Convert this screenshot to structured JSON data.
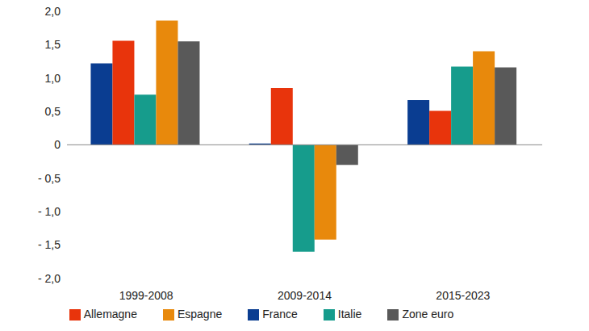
{
  "chart_data": {
    "type": "bar",
    "categories": [
      "1999-2008",
      "2009-2014",
      "2015-2023"
    ],
    "series": [
      {
        "name": "France",
        "color": "#0a3d91",
        "values": [
          1.22,
          0.02,
          0.67
        ]
      },
      {
        "name": "Allemagne",
        "color": "#e8340c",
        "values": [
          1.56,
          0.85,
          0.51
        ]
      },
      {
        "name": "Italie",
        "color": "#169c8c",
        "values": [
          0.75,
          -1.6,
          1.17
        ]
      },
      {
        "name": "Espagne",
        "color": "#e8890c",
        "values": [
          1.86,
          -1.42,
          1.4
        ]
      },
      {
        "name": "Zone euro",
        "color": "#595959",
        "values": [
          1.55,
          -0.3,
          1.16
        ]
      }
    ],
    "ylim": [
      -2,
      2
    ],
    "yticks": [
      {
        "value": -2,
        "label": "- 2,0"
      },
      {
        "value": -1.5,
        "label": "- 1,5"
      },
      {
        "value": -1,
        "label": "- 1,0"
      },
      {
        "value": -0.5,
        "label": "- 0,5"
      },
      0,
      {
        "value": 0.5,
        "label": "0,5"
      },
      {
        "value": 1,
        "label": "1,0"
      },
      {
        "value": 1.5,
        "label": "1,5"
      },
      {
        "value": 2,
        "label": "2,0"
      }
    ],
    "grid": false,
    "legend": "bottom"
  }
}
